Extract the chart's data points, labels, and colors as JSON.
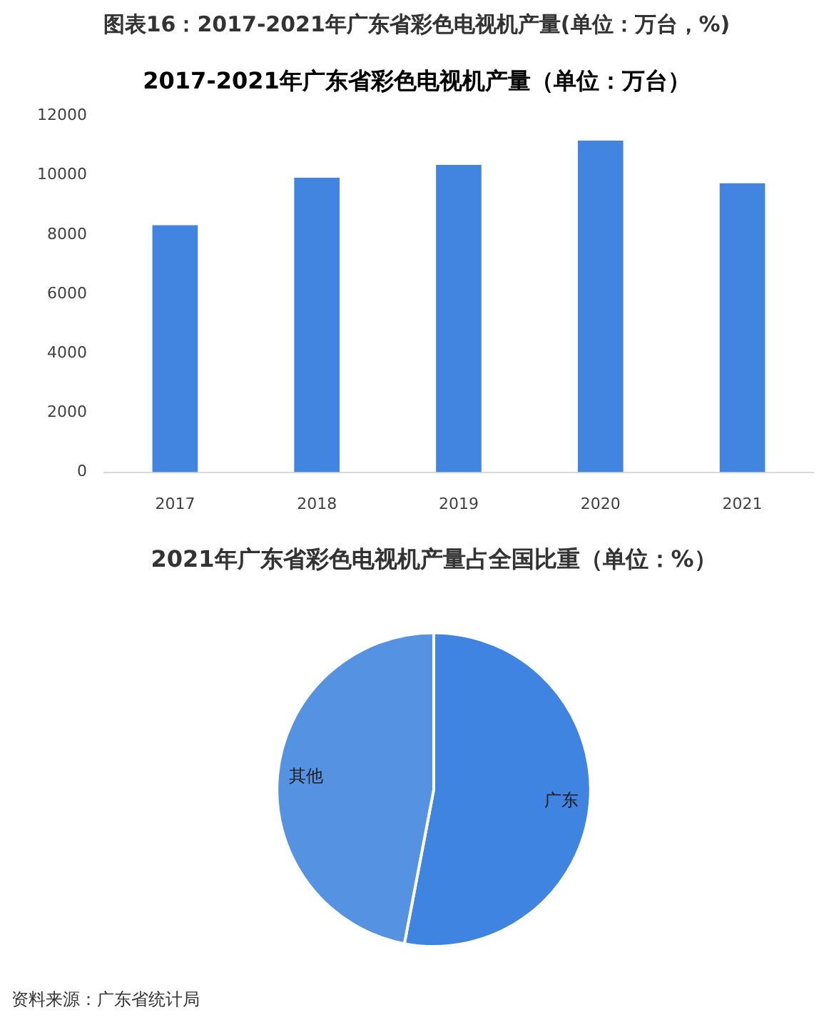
{
  "chart_data": [
    {
      "type": "bar",
      "title": "图表16：2017-2021年广东省彩色电视机产量(单位：万台，%)",
      "subtitle": "2017-2021年广东省彩色电视机产量（单位：万台）",
      "categories": [
        "2017",
        "2018",
        "2019",
        "2020",
        "2021"
      ],
      "values": [
        8320,
        9920,
        10350,
        11170,
        9730
      ],
      "color": "#4185e0",
      "ylim": [
        0,
        12000
      ],
      "yticks": [
        0,
        2000,
        4000,
        6000,
        8000,
        10000,
        12000
      ],
      "grid": false,
      "legend": false
    },
    {
      "type": "pie",
      "title": "2021年广东省彩色电视机产量占全国比重（单位：%）",
      "categories": [
        "广东",
        "其他"
      ],
      "values": [
        53,
        47
      ],
      "colors": [
        "#3f84e0",
        "#5592e2"
      ],
      "legend": false,
      "annotations": [
        "资料来源：广东省统计局"
      ]
    }
  ]
}
